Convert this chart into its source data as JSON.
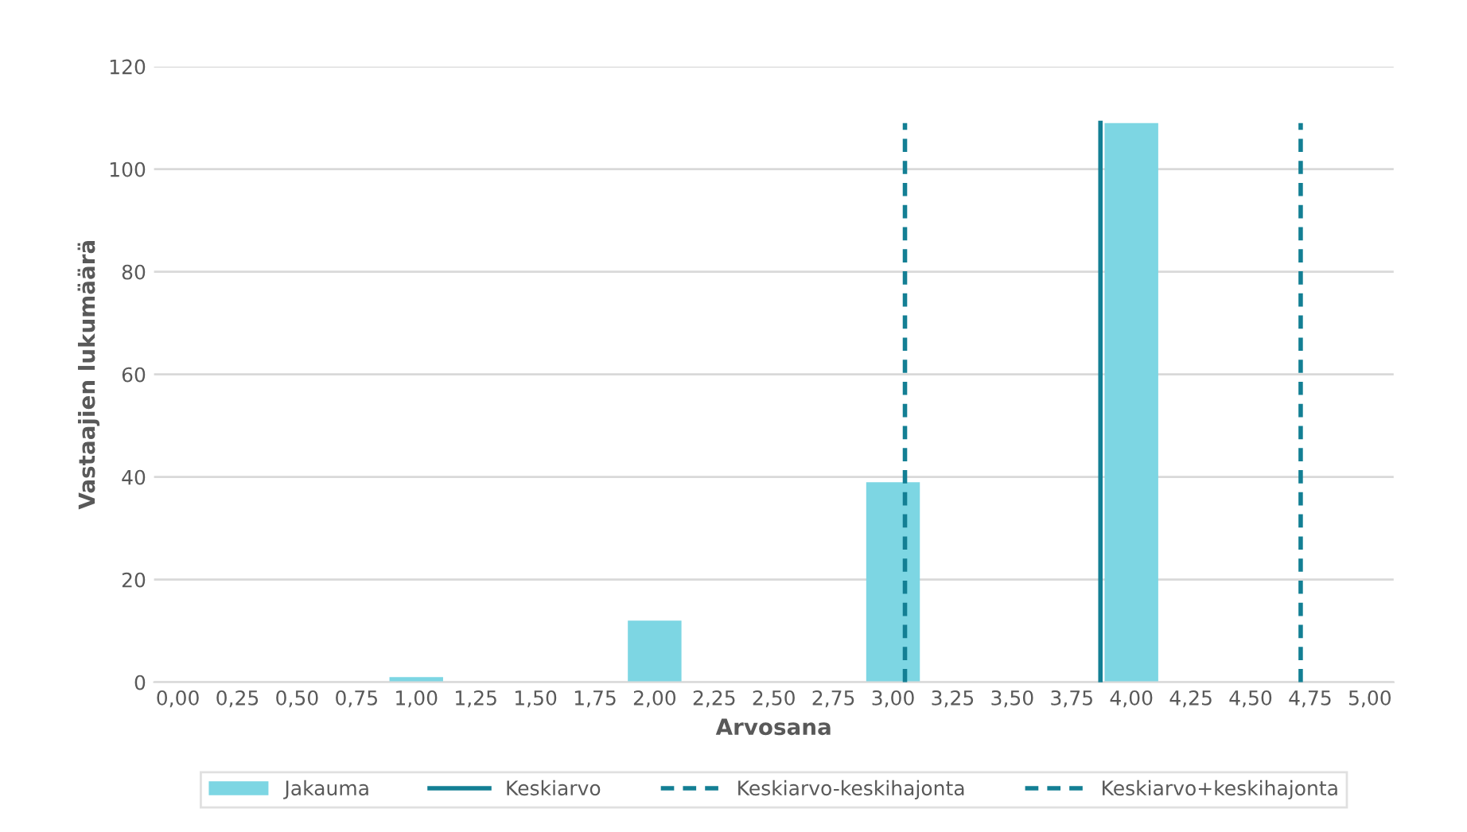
{
  "chart_data": {
    "type": "bar",
    "xlabel": "Arvosana",
    "ylabel": "Vastaajien lukumäärä",
    "series": [
      {
        "name": "Jakauma",
        "color": "#7dd6e3",
        "x": [
          1,
          2,
          3,
          4
        ],
        "values": [
          1,
          12,
          39,
          109
        ]
      },
      {
        "name": "Keskiarvo",
        "type": "line",
        "color": "#137f94",
        "line_style": "solid",
        "x": [
          3.87,
          3.87
        ],
        "values": [
          0,
          109
        ]
      },
      {
        "name": "Keskiarvo-keskihajonta",
        "type": "line",
        "color": "#137f94",
        "line_style": "dashed",
        "x": [
          3.05,
          3.05
        ],
        "values": [
          0,
          109
        ]
      },
      {
        "name": "Keskiarvo+keskihajonta",
        "type": "line",
        "color": "#137f94",
        "line_style": "dashed",
        "x": [
          4.71,
          4.71
        ],
        "values": [
          0,
          109
        ]
      }
    ],
    "xlim": [
      -0.1,
      5.1
    ],
    "xticks": [
      {
        "value": 0,
        "label": "0,00"
      },
      {
        "value": 0.25,
        "label": "0,25"
      },
      {
        "value": 0.5,
        "label": "0,50"
      },
      {
        "value": 0.75,
        "label": "0,75"
      },
      {
        "value": 1,
        "label": "1,00"
      },
      {
        "value": 1.25,
        "label": "1,25"
      },
      {
        "value": 1.5,
        "label": "1,50"
      },
      {
        "value": 1.75,
        "label": "1,75"
      },
      {
        "value": 2,
        "label": "2,00"
      },
      {
        "value": 2.25,
        "label": "2,25"
      },
      {
        "value": 2.5,
        "label": "2,50"
      },
      {
        "value": 2.75,
        "label": "2,75"
      },
      {
        "value": 3,
        "label": "3,00"
      },
      {
        "value": 3.25,
        "label": "3,25"
      },
      {
        "value": 3.5,
        "label": "3,50"
      },
      {
        "value": 3.75,
        "label": "3,75"
      },
      {
        "value": 4,
        "label": "4,00"
      },
      {
        "value": 4.25,
        "label": "4,25"
      },
      {
        "value": 4.5,
        "label": "4,50"
      },
      {
        "value": 4.75,
        "label": "4,75"
      },
      {
        "value": 5,
        "label": "5,00"
      }
    ],
    "ylim": [
      0,
      120
    ],
    "yticks": [
      0,
      20,
      40,
      60,
      80,
      100,
      120
    ],
    "grid": "y",
    "legend": "bottom"
  }
}
